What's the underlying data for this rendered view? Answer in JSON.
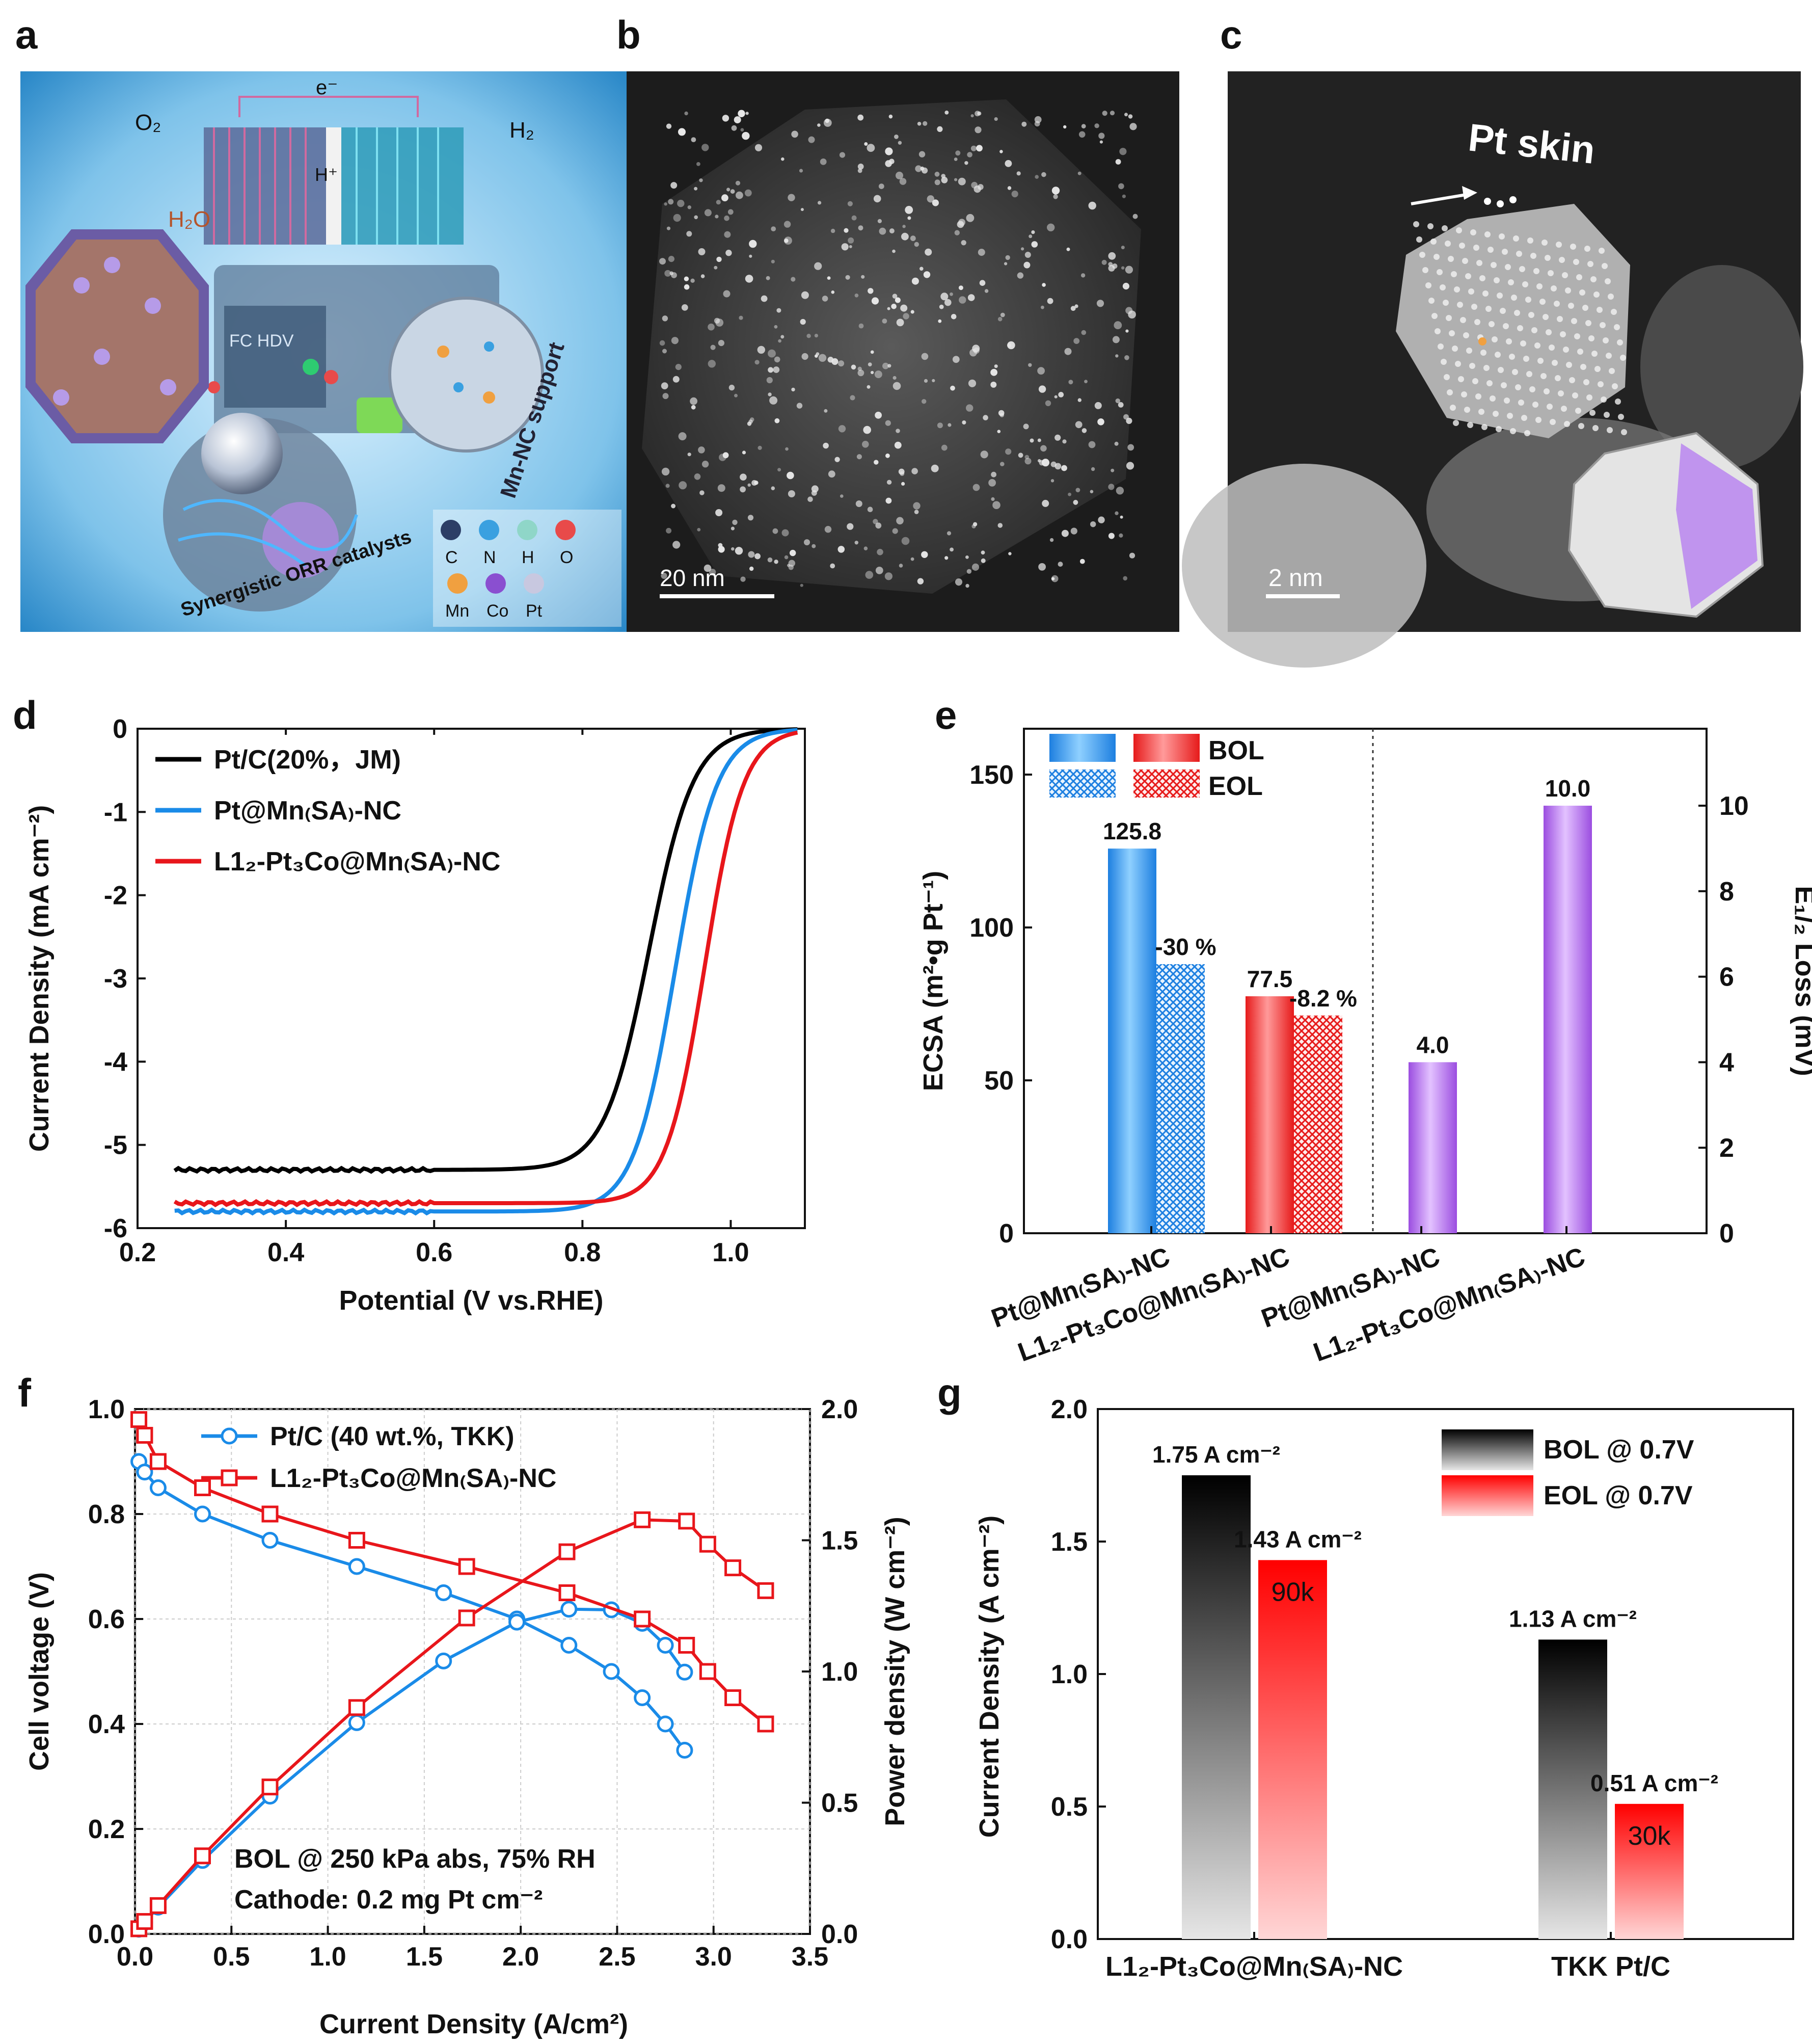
{
  "panel_labels": {
    "a": "a",
    "b": "b",
    "c": "c",
    "d": "d",
    "e": "e",
    "f": "f",
    "g": "g"
  },
  "panel_a": {
    "top_labels": {
      "o2": "O₂",
      "e": "e⁻",
      "h": "H⁺",
      "h2": "H₂",
      "h2o": "H₂O",
      "truck": "FC HDV"
    },
    "support": "Mn-NC support",
    "catalyst": "Synergistic ORR catalysts",
    "legend": [
      {
        "sym": "C",
        "color": "#2c3e66"
      },
      {
        "sym": "N",
        "color": "#3aa0e0"
      },
      {
        "sym": "H",
        "color": "#8fd6c8"
      },
      {
        "sym": "O",
        "color": "#e84a4a"
      },
      {
        "sym": "Mn",
        "color": "#f0a040"
      },
      {
        "sym": "Co",
        "color": "#8a4fd0"
      },
      {
        "sym": "Pt",
        "color": "#c8c8e0"
      }
    ]
  },
  "panel_b": {
    "scalebar": "20 nm"
  },
  "panel_c": {
    "title": "Pt skin",
    "scalebar": "2 nm"
  },
  "chart_data": [
    {
      "id": "d",
      "type": "line",
      "xlabel": "Potential (V vs.RHE)",
      "ylabel": "Current Density (mA cm⁻²)",
      "xlim": [
        0.2,
        1.1
      ],
      "ylim": [
        -6,
        0
      ],
      "xticks": [
        "0.2",
        "0.4",
        "0.6",
        "0.8",
        "1.0"
      ],
      "yticks": [
        "0",
        "-1",
        "-2",
        "-3",
        "-4",
        "-5",
        "-6"
      ],
      "series": [
        {
          "name": "Pt/C(20%，JM)",
          "color": "#000000",
          "plateau": -5.3,
          "e_half": 0.89,
          "slope": 0.03
        },
        {
          "name": "Pt@Mn_SA-NC",
          "color": "#1a8be8",
          "plateau": -5.8,
          "e_half": 0.925,
          "slope": 0.028
        },
        {
          "name": "L1₂-Pt₃Co@Mn_SA-NC",
          "color": "#e8161b",
          "plateau": -5.7,
          "e_half": 0.965,
          "slope": 0.026
        }
      ]
    },
    {
      "id": "e",
      "type": "bar",
      "ylabel_left": "ECSA (m²•g_Pt⁻¹)",
      "ylabel_right": "E1/2 Loss (mV)",
      "ylim_left": [
        0,
        165
      ],
      "ylim_right": [
        0,
        11.8
      ],
      "yticks_left": [
        "0",
        "50",
        "100",
        "150"
      ],
      "yticks_right": [
        "0",
        "2",
        "4",
        "6",
        "8",
        "10"
      ],
      "legend": [
        "BOL",
        "EOL"
      ],
      "categories": [
        "Pt@Mn_SA-NC",
        "L1₂-Pt₃Co@Mn_SA-NC",
        "Pt@Mn_SA-NC",
        "L1₂-Pt₃Co@Mn_SA-NC"
      ],
      "ecsa": [
        {
          "material": "Pt@Mn_SA-NC",
          "bol": 125.8,
          "eol": 88,
          "bol_label": "125.8",
          "eol_label": "-30 %"
        },
        {
          "material": "L1₂-Pt₃Co@Mn_SA-NC",
          "bol": 77.5,
          "eol": 71.2,
          "bol_label": "77.5",
          "eol_label": "-8.2 %"
        }
      ],
      "e_half_loss": [
        {
          "material": "Pt@Mn_SA-NC",
          "value": 4.0,
          "label": "4.0"
        },
        {
          "material": "L1₂-Pt₃Co@Mn_SA-NC",
          "value": 10.0,
          "label": "10.0"
        }
      ]
    },
    {
      "id": "f",
      "type": "line",
      "xlabel": "Current Density (A/cm²)",
      "ylabel_left": "Cell voltage (V)",
      "ylabel_right": "Power density (W cm⁻²)",
      "xlim": [
        0,
        3.5
      ],
      "ylim_left": [
        0,
        1.0
      ],
      "ylim_right": [
        0,
        2.0
      ],
      "xticks": [
        "0.0",
        "0.5",
        "1.0",
        "1.5",
        "2.0",
        "2.5",
        "3.0",
        "3.5"
      ],
      "yticks_left": [
        "0.0",
        "0.2",
        "0.4",
        "0.6",
        "0.8",
        "1.0"
      ],
      "yticks_right": [
        "0.0",
        "0.5",
        "1.0",
        "1.5",
        "2.0"
      ],
      "series": [
        {
          "name": "Pt/C (40 wt.%, TKK)",
          "color": "#1a8be8",
          "marker": "circle",
          "x": [
            0.02,
            0.05,
            0.12,
            0.35,
            0.7,
            1.15,
            1.6,
            1.98,
            2.25,
            2.47,
            2.63,
            2.75,
            2.85
          ],
          "voltage": [
            0.9,
            0.88,
            0.85,
            0.8,
            0.75,
            0.7,
            0.65,
            0.6,
            0.55,
            0.5,
            0.45,
            0.4,
            0.35
          ]
        },
        {
          "name": "L1₂-Pt₃Co@Mn_SA-NC",
          "color": "#e8161b",
          "marker": "square",
          "x": [
            0.02,
            0.05,
            0.12,
            0.35,
            0.7,
            1.15,
            1.72,
            2.24,
            2.63,
            2.86,
            2.97,
            3.1,
            3.27
          ],
          "voltage": [
            0.98,
            0.95,
            0.9,
            0.85,
            0.8,
            0.75,
            0.7,
            0.65,
            0.6,
            0.55,
            0.5,
            0.45,
            0.4
          ]
        }
      ],
      "annotation_line1": "BOL @ 250 kPa_abs, 75% RH",
      "annotation_line2": "Cathode: 0.2 mg_Pt cm⁻²"
    },
    {
      "id": "g",
      "type": "bar",
      "ylabel": "Current Density (A cm⁻²)",
      "ylim": [
        0,
        2.0
      ],
      "yticks": [
        "0.0",
        "0.5",
        "1.0",
        "1.5",
        "2.0"
      ],
      "legend": [
        "BOL @ 0.7V",
        "EOL @ 0.7V"
      ],
      "categories": [
        "L1₂-Pt₃Co@Mn_SA-NC",
        "TKK Pt/C"
      ],
      "bol": [
        1.75,
        1.13
      ],
      "eol": [
        1.43,
        0.51
      ],
      "bol_labels": [
        "1.75 A cm⁻²",
        "1.13 A cm⁻²"
      ],
      "eol_labels": [
        "1.43 A cm⁻²",
        "0.51 A cm⁻²"
      ],
      "cycles": [
        "90k",
        "30k"
      ]
    }
  ]
}
